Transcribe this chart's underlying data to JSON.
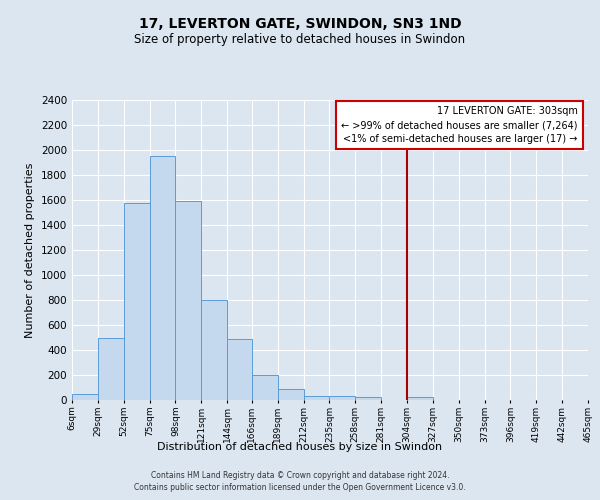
{
  "title": "17, LEVERTON GATE, SWINDON, SN3 1ND",
  "subtitle": "Size of property relative to detached houses in Swindon",
  "xlabel": "Distribution of detached houses by size in Swindon",
  "ylabel": "Number of detached properties",
  "bin_edges": [
    6,
    29,
    52,
    75,
    98,
    121,
    144,
    166,
    189,
    212,
    235,
    258,
    281,
    304,
    327,
    350,
    373,
    396,
    419,
    442,
    465
  ],
  "bin_labels": [
    "6sqm",
    "29sqm",
    "52sqm",
    "75sqm",
    "98sqm",
    "121sqm",
    "144sqm",
    "166sqm",
    "189sqm",
    "212sqm",
    "235sqm",
    "258sqm",
    "281sqm",
    "304sqm",
    "327sqm",
    "350sqm",
    "373sqm",
    "396sqm",
    "419sqm",
    "442sqm",
    "465sqm"
  ],
  "bar_heights": [
    50,
    500,
    1580,
    1950,
    1590,
    800,
    490,
    200,
    90,
    35,
    35,
    25,
    0,
    25,
    0,
    0,
    0,
    0,
    0,
    0
  ],
  "bar_color": "#c5d9ee",
  "bar_edge_color": "#5b9bd5",
  "background_color": "#dce6f1",
  "grid_color": "#ffffff",
  "plot_bg_color": "#dce6f1",
  "red_line_x": 304,
  "ylim": [
    0,
    2400
  ],
  "yticks": [
    0,
    200,
    400,
    600,
    800,
    1000,
    1200,
    1400,
    1600,
    1800,
    2000,
    2200,
    2400
  ],
  "annotation_title": "17 LEVERTON GATE: 303sqm",
  "annotation_line1": "← >99% of detached houses are smaller (7,264)",
  "annotation_line2": "<1% of semi-detached houses are larger (17) →",
  "annotation_box_color": "#ffffff",
  "annotation_border_color": "#cc0000",
  "footer1": "Contains HM Land Registry data © Crown copyright and database right 2024.",
  "footer2": "Contains public sector information licensed under the Open Government Licence v3.0."
}
